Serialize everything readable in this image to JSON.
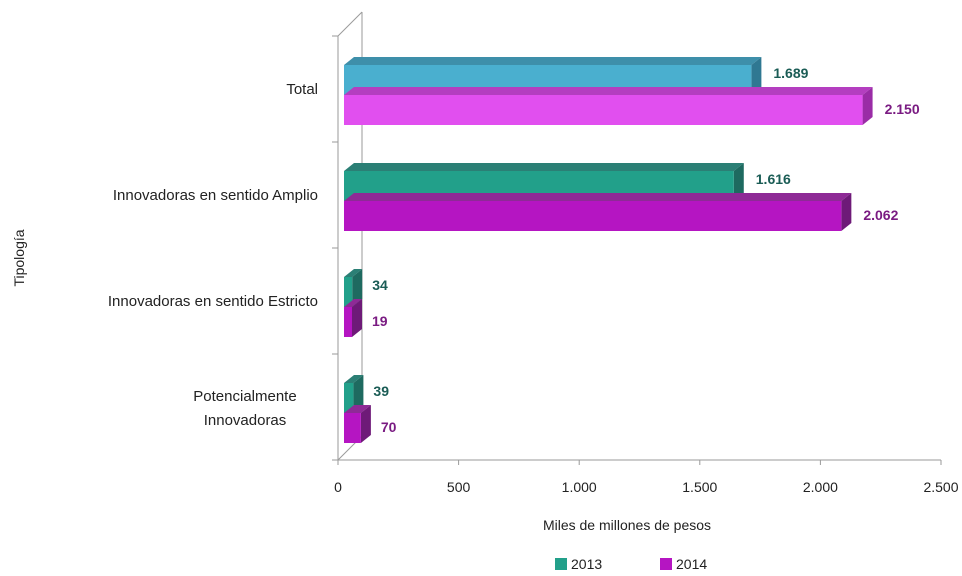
{
  "chart_data": {
    "type": "bar",
    "orientation": "horizontal",
    "style": "3d",
    "categories": [
      "Total",
      "Innovadoras en sentido Amplio",
      "Innovadoras en sentido  Estricto",
      [
        "Potencialmente",
        "Innovadoras"
      ]
    ],
    "series": [
      {
        "name": "2013",
        "values": [
          1689,
          1616,
          34,
          39
        ],
        "labels": [
          "1.689",
          "1.616",
          "34",
          "39"
        ]
      },
      {
        "name": "2014",
        "values": [
          2150,
          2062,
          19,
          70
        ],
        "labels": [
          "2.150",
          "2.062",
          "19",
          "70"
        ]
      }
    ],
    "title": "",
    "xlabel": "Miles de millones de pesos",
    "ylabel": "Tipología",
    "xlim": [
      0,
      2500
    ],
    "xticks": [
      0,
      500,
      1000,
      1500,
      2000,
      2500
    ],
    "xtick_labels": [
      "0",
      "500",
      "1.000",
      "1.500",
      "2.000",
      "2.500"
    ],
    "grid": false,
    "legend": "bottom",
    "colors": {
      "2013": {
        "front": "#22A08A",
        "top": "#2B7F75",
        "side": "#1E6A60",
        "label": "#1A5C55"
      },
      "2014": {
        "front": "#B515C2",
        "top": "#8E2A96",
        "side": "#6E1A78",
        "label": "#7A1B82"
      },
      "total_2013": {
        "front": "#4AAFCF",
        "top": "#3E8FAA",
        "side": "#2F7892"
      },
      "total_2014": {
        "front": "#E14FEF",
        "top": "#B43EC0",
        "side": "#9A2CA6"
      }
    }
  }
}
